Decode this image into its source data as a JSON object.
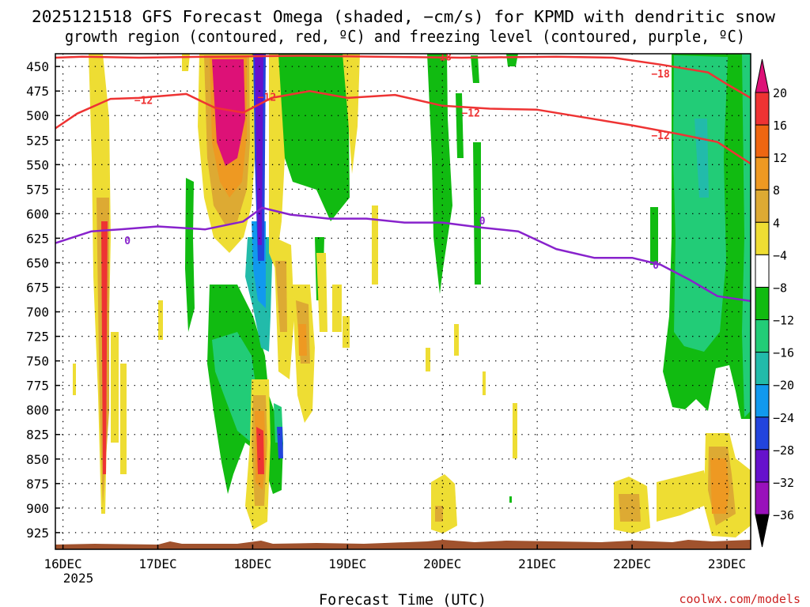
{
  "chart_data": {
    "type": "heatmap",
    "title_line1": "2025121518 GFS Forecast Omega (shaded, −cm/s) for KPMD with dendritic snow",
    "title_line2": "growth region (contoured, red, ºC) and freezing level (contoured, purple, ºC)",
    "xlabel": "Forecast Time (UTC)",
    "credit": "coolwx.com/models",
    "year_label": "2025",
    "x_ticks": [
      "16DEC",
      "17DEC",
      "18DEC",
      "19DEC",
      "20DEC",
      "21DEC",
      "22DEC",
      "23DEC"
    ],
    "x_range_days": [
      -0.08,
      7.25
    ],
    "y_ticks": [
      450,
      475,
      500,
      525,
      550,
      575,
      600,
      625,
      650,
      675,
      700,
      725,
      750,
      775,
      800,
      825,
      850,
      875,
      900,
      925
    ],
    "y_range_hpa": [
      437,
      942
    ],
    "colorbar": {
      "labels": [
        "20",
        "16",
        "12",
        "8",
        "4",
        "−4",
        "−8",
        "−12",
        "−16",
        "−20",
        "−24",
        "−28",
        "−32",
        "−36"
      ],
      "colors": [
        "#dd1177",
        "#ee3333",
        "#ee6611",
        "#ee9922",
        "#ddaa33",
        "#eedd33",
        "#ffffff",
        "#11bb11",
        "#22cc77",
        "#22bbaa",
        "#1199ee",
        "#2244dd",
        "#6611cc",
        "#9911bb",
        "#aaaaaa",
        "#000000"
      ]
    },
    "contours": [
      {
        "name": "-18C",
        "label": "−18",
        "color": "#ee3333",
        "t": [
          -0.08,
          0.2,
          0.8,
          1.6,
          2.5,
          3.3,
          4.2,
          5.2,
          5.8,
          6.3,
          6.8,
          7.0,
          7.25
        ],
        "p": [
          441,
          440,
          441,
          440,
          439,
          440,
          441,
          440,
          441,
          448,
          456,
          468,
          482
        ]
      },
      {
        "name": "-12C",
        "label": "−12",
        "color": "#ee3333",
        "t": [
          -0.08,
          0.15,
          0.5,
          0.8,
          1.3,
          1.6,
          1.9,
          2.2,
          2.6,
          3.0,
          3.5,
          4.0,
          4.5,
          5.0,
          5.5,
          6.0,
          6.5,
          6.9,
          7.25
        ],
        "p": [
          513,
          498,
          483,
          482,
          478,
          492,
          497,
          482,
          475,
          482,
          479,
          490,
          493,
          494,
          502,
          510,
          519,
          527,
          549
        ]
      },
      {
        "name": "0C",
        "label": "0",
        "color": "#8822cc",
        "t": [
          -0.08,
          0.3,
          0.6,
          1.0,
          1.5,
          1.9,
          2.1,
          2.4,
          2.8,
          3.2,
          3.6,
          4.0,
          4.4,
          4.8,
          5.2,
          5.6,
          6.0,
          6.3,
          6.6,
          6.9,
          7.25
        ],
        "p": [
          630,
          618,
          616,
          613,
          616,
          608,
          594,
          601,
          605,
          605,
          609,
          609,
          614,
          618,
          636,
          645,
          645,
          652,
          667,
          684,
          689
        ]
      }
    ],
    "contour_labels": [
      {
        "text": "−18",
        "t": 4.0,
        "p": 440,
        "color": "#ee3333"
      },
      {
        "text": "−18",
        "t": 6.3,
        "p": 457,
        "color": "#ee3333"
      },
      {
        "text": "−12",
        "t": 0.85,
        "p": 484,
        "color": "#ee3333"
      },
      {
        "text": "−12",
        "t": 2.15,
        "p": 481,
        "color": "#ee3333"
      },
      {
        "text": "−12",
        "t": 4.3,
        "p": 497,
        "color": "#ee3333"
      },
      {
        "text": "−12",
        "t": 6.3,
        "p": 520,
        "color": "#ee3333"
      },
      {
        "text": "0",
        "t": 0.68,
        "p": 627,
        "color": "#8822cc"
      },
      {
        "text": "0",
        "t": 4.42,
        "p": 607,
        "color": "#8822cc"
      },
      {
        "text": "0",
        "t": 6.25,
        "p": 652,
        "color": "#8822cc"
      }
    ]
  }
}
